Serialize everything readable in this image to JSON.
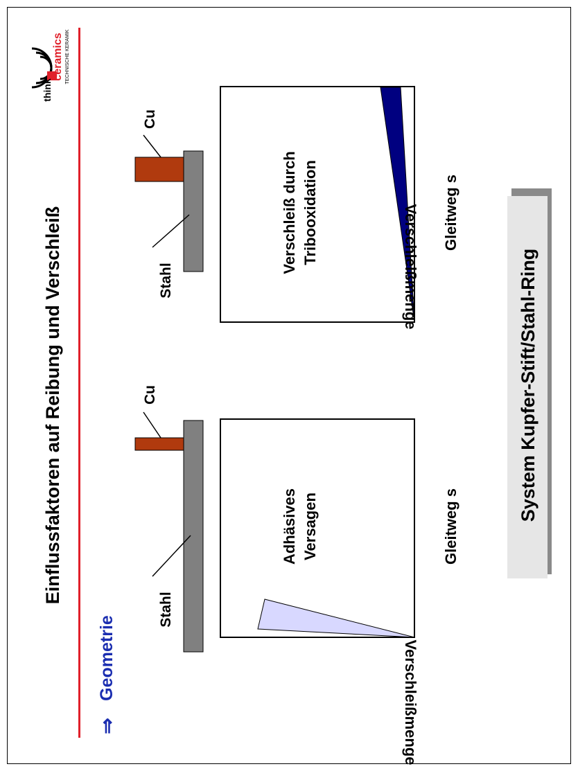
{
  "slide": {
    "title": "Einflussfaktoren auf Reibung und Verschleiß",
    "section_arrow": "⇒",
    "section": "Geometrie",
    "footer_box": "System Kupfer-Stift/Stahl-Ring"
  },
  "logo": {
    "word_think": "think",
    "word_ceramics": "ceramics",
    "tagline": "TECHNISCHE KERAMIK"
  },
  "left_panel": {
    "label_steel": "Stahl",
    "label_copper": "Cu",
    "axis_y": "Verschleißmenge",
    "axis_x": "Gleitweg s",
    "region_text_1": "Adhäsives",
    "region_text_2": "Versagen",
    "fill_color": "#d8d8ff"
  },
  "right_panel": {
    "label_steel": "Stahl",
    "label_copper": "Cu",
    "axis_y": "Verschleißmenge",
    "axis_x": "Gleitweg s",
    "region_text_1": "Verschleiß durch",
    "region_text_2": "Tribooxidation",
    "fill_color": "#000080"
  },
  "colors": {
    "steel": "#808080",
    "copper": "#b03a0e",
    "accent_red": "#e0202a",
    "section_blue": "#1a2db0",
    "footer_bg": "#e6e6e6",
    "footer_shadow": "#8a8a8a"
  }
}
